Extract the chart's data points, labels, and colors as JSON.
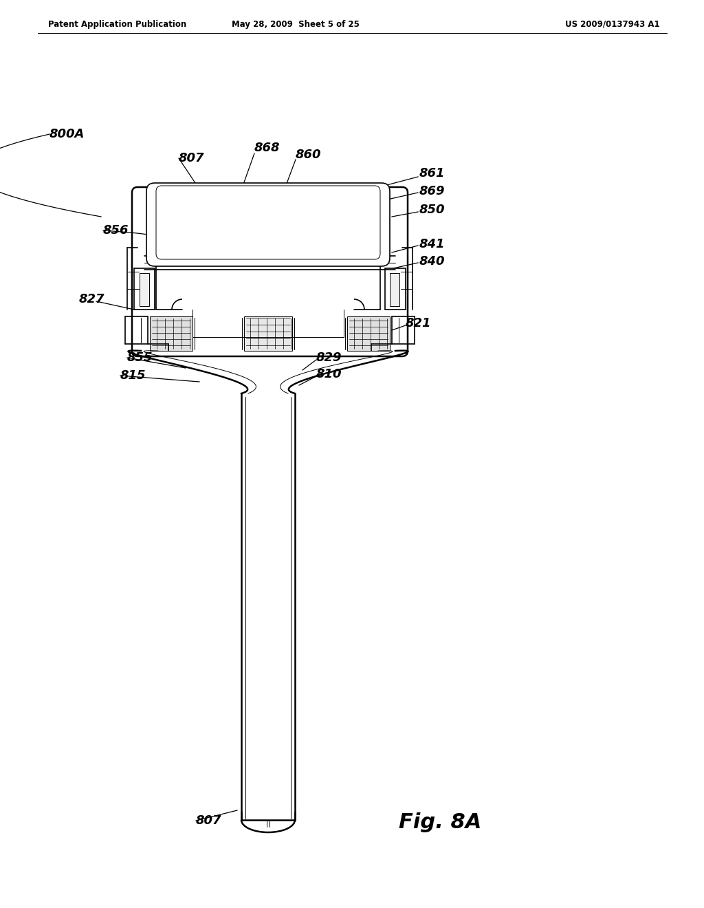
{
  "header_left": "Patent Application Publication",
  "header_mid": "May 28, 2009  Sheet 5 of 25",
  "header_right": "US 2009/0137943 A1",
  "fig_label": "Fig. 8A",
  "background": "#ffffff",
  "lw_thick": 1.8,
  "lw_med": 1.2,
  "lw_thin": 0.7,
  "lw_hair": 0.5
}
